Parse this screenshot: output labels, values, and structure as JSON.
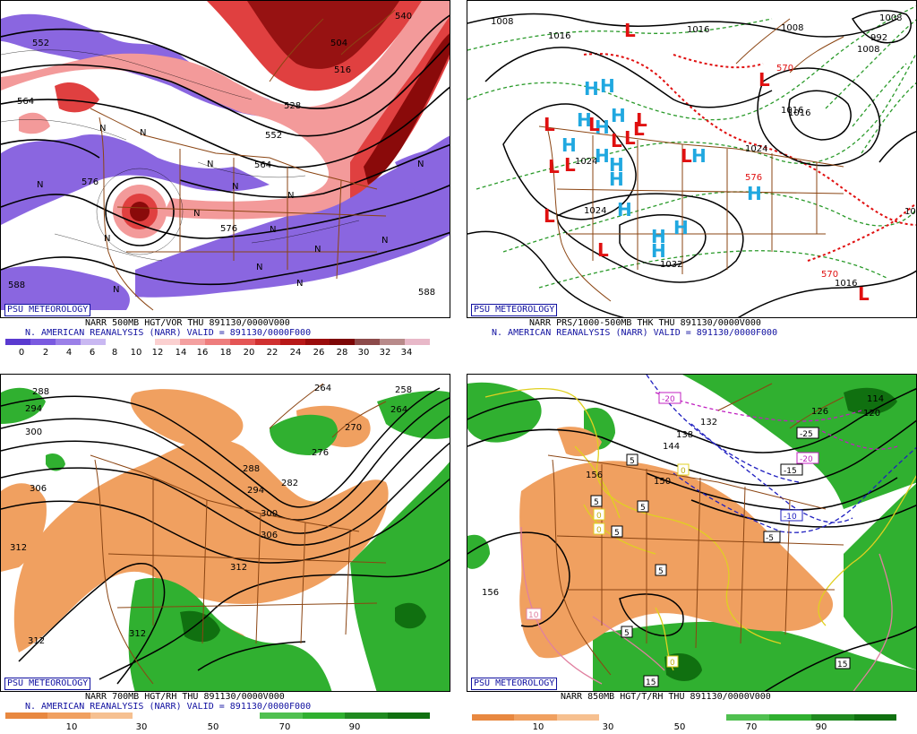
{
  "badge": "PSU METEOROLOGY",
  "colors": {
    "purple": "#8a66e0",
    "red_light": "#f39a9a",
    "red_mid": "#e04040",
    "red_dark": "#8a0a0a",
    "orange": "#f0a060",
    "green": "#30b030",
    "green_dark": "#107010",
    "blue_badge": "#1010a0",
    "l_red": "#e01010",
    "h_cyan": "#20a8e0",
    "border_brown": "#8b4513"
  },
  "panels": {
    "p500": {
      "caption_line1": "NARR 500MB HGT/VOR THU 891130/0000V000",
      "caption_line2": "N. AMERICAN REANALYSIS (NARR) VALID = 891130/0000F000",
      "colorbar_ticks": [
        "0",
        "2",
        "4",
        "6",
        "8",
        "10",
        "12",
        "14",
        "16",
        "18",
        "20",
        "22",
        "24",
        "26",
        "28",
        "30",
        "32",
        "34"
      ],
      "contour_labels": [
        "552",
        "564",
        "576",
        "504",
        "516",
        "528",
        "552",
        "564",
        "576",
        "588",
        "540",
        "588"
      ],
      "markers": [
        "N",
        "N",
        "N",
        "N",
        "N",
        "N",
        "N",
        "N",
        "N",
        "N",
        "N",
        "N",
        "N",
        "N",
        "N"
      ]
    },
    "psfc": {
      "caption_line1": "NARR PRS/1000-500MB THK THU 891130/0000V000",
      "caption_line2": "N. AMERICAN REANALYSIS (NARR) VALID = 891130/0000F000",
      "contour_labels": [
        "1008",
        "1016",
        "1016",
        "1008",
        "1008",
        "1016",
        "1024",
        "1024",
        "1032",
        "1016",
        "570",
        "570",
        "576",
        "1016",
        "1024",
        "992",
        "1008",
        "10"
      ],
      "highs": [
        "H",
        "H",
        "H",
        "H",
        "H",
        "H",
        "H",
        "H",
        "H",
        "H",
        "H",
        "H",
        "H",
        "H",
        "H"
      ],
      "lows": [
        "L",
        "L",
        "L",
        "L",
        "L",
        "L",
        "L",
        "L",
        "L",
        "L",
        "L",
        "L",
        "L",
        "L"
      ]
    },
    "p700": {
      "caption_line1": "NARR 700MB HGT/RH THU 891130/0000V000",
      "caption_line2": "N. AMERICAN REANALYSIS (NARR) VALID = 891130/0000F000",
      "colorbar_ticks": [
        "10",
        "30",
        "50",
        "70",
        "90"
      ],
      "contour_labels": [
        "288",
        "294",
        "300",
        "306",
        "312",
        "312",
        "312",
        "306",
        "300",
        "294",
        "288",
        "282",
        "276",
        "270",
        "264",
        "264",
        "258"
      ]
    },
    "p850": {
      "caption_line1": "NARR 850MB HGT/T/RH THU 891130/0000V000",
      "colorbar_ticks": [
        "10",
        "30",
        "50",
        "70",
        "90"
      ],
      "contour_labels": [
        "156",
        "156",
        "150",
        "144",
        "138",
        "132",
        "126",
        "120",
        "114"
      ],
      "temp_labels": [
        "-20",
        "-25",
        "-20",
        "-15",
        "-10",
        "-5",
        "5",
        "5",
        "5",
        "5",
        "5",
        "5",
        "10",
        "15",
        "15",
        "0",
        "0",
        "0",
        "0"
      ]
    }
  }
}
